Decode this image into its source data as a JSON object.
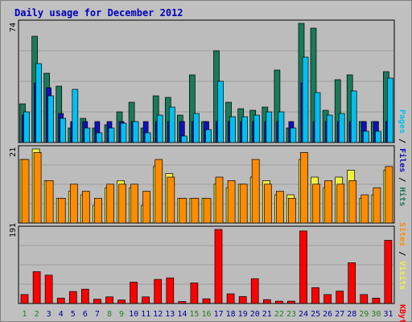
{
  "chart": {
    "title": "Daily usage for December 2012",
    "max_labels": {
      "hits": "74",
      "visits": "21",
      "kbytes": "191"
    },
    "right_labels": {
      "pages": "Pages",
      "files": "Files",
      "hits": "Hits",
      "sites": "Sites",
      "visits": "Visits",
      "kbytes": "KBytes",
      "sep": " / "
    },
    "colors": {
      "title": "#0000c0",
      "frame_bg": "#c0c0c0",
      "panel_bg": "#bcbcbc",
      "hits": "#1a7a5a",
      "files": "#1010c0",
      "pages": "#00c0f0",
      "visits": "#f0f040",
      "sites": "#ff8c00",
      "kbytes": "#ff0000",
      "weekday": "#0000a0",
      "weekend": "#208020"
    }
  },
  "chart_data": {
    "type": "bar",
    "title": "Daily usage for December 2012",
    "categories": [
      "1",
      "2",
      "3",
      "4",
      "5",
      "6",
      "7",
      "8",
      "9",
      "10",
      "11",
      "12",
      "13",
      "14",
      "15",
      "16",
      "17",
      "18",
      "19",
      "20",
      "21",
      "22",
      "23",
      "24",
      "25",
      "26",
      "27",
      "28",
      "29",
      "30",
      "31"
    ],
    "weekend_days": [
      "1",
      "2",
      "8",
      "9",
      "15",
      "16",
      "22",
      "23",
      "29",
      "30"
    ],
    "panels": [
      {
        "name": "hits-files-pages",
        "ylim": [
          0,
          74
        ],
        "series": [
          {
            "name": "Hits",
            "values": [
              24,
              66,
              43,
              35,
              9,
              15,
              9,
              11,
              19,
              25,
              9,
              29,
              28,
              17,
              42,
              13,
              57,
              25,
              21,
              20,
              22,
              45,
              9,
              74,
              71,
              20,
              39,
              42,
              13,
              13,
              44
            ]
          },
          {
            "name": "Files",
            "values": [
              17,
              37,
              34,
              18,
              13,
              13,
              13,
              13,
              13,
              13,
              13,
              13,
              13,
              13,
              13,
              13,
              13,
              13,
              13,
              13,
              13,
              13,
              13,
              37,
              13,
              13,
              13,
              13,
              13,
              13,
              13
            ]
          },
          {
            "name": "Pages",
            "values": [
              19,
              49,
              29,
              15,
              33,
              9,
              6,
              9,
              12,
              13,
              6,
              17,
              22,
              4,
              18,
              8,
              38,
              16,
              16,
              17,
              19,
              19,
              9,
              53,
              31,
              17,
              18,
              32,
              7,
              7,
              40
            ]
          }
        ]
      },
      {
        "name": "visits-sites",
        "ylim": [
          0,
          21
        ],
        "series": [
          {
            "name": "Visits",
            "values": [
              18,
              21,
              12,
              7,
              9,
              8,
              5,
              10,
              12,
              10,
              5,
              16,
              14,
              7,
              7,
              7,
              11,
              10,
              11,
              13,
              12,
              8,
              8,
              18,
              13,
              10,
              13,
              15,
              7,
              8,
              15
            ]
          },
          {
            "name": "Sites",
            "values": [
              18,
              20,
              12,
              7,
              11,
              9,
              7,
              11,
              11,
              11,
              9,
              18,
              13,
              7,
              7,
              7,
              13,
              12,
              11,
              18,
              11,
              9,
              7,
              20,
              11,
              12,
              11,
              12,
              8,
              10,
              16
            ]
          }
        ]
      },
      {
        "name": "kbytes",
        "ylim": [
          0,
          191
        ],
        "series": [
          {
            "name": "KBytes",
            "values": [
              23,
              82,
              73,
              14,
              31,
              37,
              11,
              17,
              9,
              55,
              17,
              62,
              66,
              5,
              53,
              12,
              191,
              25,
              18,
              64,
              10,
              6,
              6,
              187,
              41,
              23,
              32,
              105,
              23,
              14,
              163
            ]
          }
        ]
      }
    ]
  }
}
